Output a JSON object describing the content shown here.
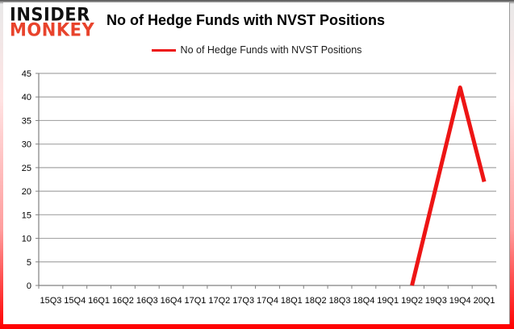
{
  "logo": {
    "line1": "INSIDER",
    "line2": "MONKEY",
    "line2_color": "#e8432c"
  },
  "header": {
    "title": "No of Hedge Funds with NVST Positions"
  },
  "legend": {
    "label": "No of Hedge Funds with NVST Positions",
    "swatch_color": "#ed1515"
  },
  "theme": {
    "frame_border_red": "#ff0000",
    "axis_color": "#808080",
    "gridline_color": "#a6a6a6",
    "text_color": "#000000"
  },
  "chart_data": {
    "type": "line",
    "title": "No of Hedge Funds with NVST Positions",
    "xlabel": "",
    "ylabel": "",
    "categories": [
      "15Q3",
      "15Q4",
      "16Q1",
      "16Q2",
      "16Q3",
      "16Q4",
      "17Q1",
      "17Q2",
      "17Q3",
      "17Q4",
      "18Q1",
      "18Q2",
      "18Q3",
      "18Q4",
      "19Q1",
      "19Q2",
      "19Q3",
      "19Q4",
      "20Q1"
    ],
    "series": [
      {
        "name": "No of Hedge Funds with NVST Positions",
        "color": "#ed1515",
        "values": [
          null,
          null,
          null,
          null,
          null,
          null,
          null,
          null,
          null,
          null,
          null,
          null,
          null,
          null,
          null,
          0,
          21,
          42,
          22
        ]
      }
    ],
    "ylim": [
      0,
      45
    ],
    "ytick_step": 5,
    "grid": true,
    "legend_position": "top-center"
  }
}
